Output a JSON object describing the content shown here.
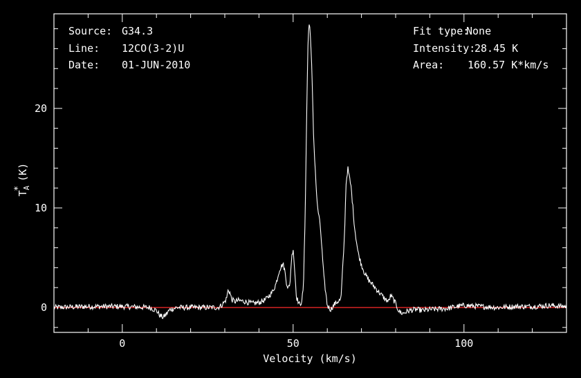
{
  "chart_data": {
    "type": "line",
    "xlabel": "Velocity (km/s)",
    "ylabel_main": "T",
    "ylabel_sup": "*",
    "ylabel_sub": "A",
    "ylabel_units": "(K)",
    "xlim": [
      -20,
      130
    ],
    "ylim": [
      -2.5,
      29.5
    ],
    "x_ticks": [
      0,
      50,
      100
    ],
    "x_tick_labels": [
      "0",
      "50",
      "100"
    ],
    "y_ticks": [
      0,
      10,
      20
    ],
    "y_tick_labels": [
      "0",
      "10",
      "20"
    ],
    "baseline_value": 0,
    "baseline_color": "#ff2a2a",
    "line_color": "#ffffff",
    "frame_color": "#ffffff",
    "background_color": "#000000",
    "info_left": [
      {
        "key": "Source:",
        "value": "G34.3"
      },
      {
        "key": "Line:",
        "value": "12CO(3-2)U"
      },
      {
        "key": "Date:",
        "value": "01-JUN-2010"
      }
    ],
    "info_right": [
      {
        "key": "Fit type:",
        "value": "None"
      },
      {
        "key": "Intensity:",
        "value": "28.45 K"
      },
      {
        "key": "Area:",
        "value": "160.57 K*km/s"
      }
    ],
    "series": [
      {
        "x": [
          -20,
          -10,
          0,
          8,
          10,
          11,
          12,
          13,
          14,
          16,
          20,
          25,
          27,
          28,
          29,
          30,
          30.5,
          31,
          31.5,
          32,
          33,
          34,
          36,
          38,
          40,
          42,
          43,
          44,
          45,
          46,
          47,
          47.5,
          48,
          48.5,
          49,
          49.5,
          50,
          50.5,
          51,
          52,
          52.5,
          53,
          53.5,
          54,
          54.3,
          54.6,
          55,
          55.5,
          56,
          57,
          58,
          59,
          60,
          61,
          62,
          63,
          64,
          65,
          65.5,
          66,
          67,
          68,
          69,
          70,
          71,
          72,
          73,
          74,
          75,
          76,
          77,
          78,
          78.5,
          79,
          80,
          81,
          82,
          84,
          86,
          88,
          90,
          95,
          98,
          100,
          105,
          110,
          115,
          120,
          125,
          130
        ],
        "y": [
          0,
          0.1,
          0.1,
          0,
          -0.3,
          -0.8,
          -1.0,
          -0.6,
          -0.2,
          0,
          0,
          0,
          0,
          0,
          0.2,
          0.6,
          0.9,
          1.8,
          1.5,
          0.8,
          0.6,
          0.7,
          0.6,
          0.4,
          0.5,
          0.8,
          1.2,
          1.6,
          2.4,
          3.8,
          4.4,
          3.8,
          2.6,
          2.0,
          2.1,
          4.8,
          6.0,
          3.5,
          1.0,
          0.2,
          0.7,
          1.8,
          9.0,
          20.0,
          26.0,
          28.45,
          28.0,
          23.5,
          17.0,
          10.5,
          8.0,
          3.0,
          0.2,
          -0.2,
          0.3,
          0.6,
          0.8,
          7.0,
          12.5,
          14.0,
          12.0,
          8.0,
          5.5,
          4.3,
          3.4,
          2.8,
          2.4,
          2.0,
          1.6,
          1.2,
          0.8,
          0.6,
          1.2,
          1.0,
          0.4,
          -0.4,
          -0.6,
          -0.3,
          -0.2,
          -0.3,
          -0.2,
          -0.1,
          0.1,
          0.2,
          0.1,
          0,
          0.1,
          0.1,
          0.2,
          0.1
        ]
      }
    ]
  }
}
